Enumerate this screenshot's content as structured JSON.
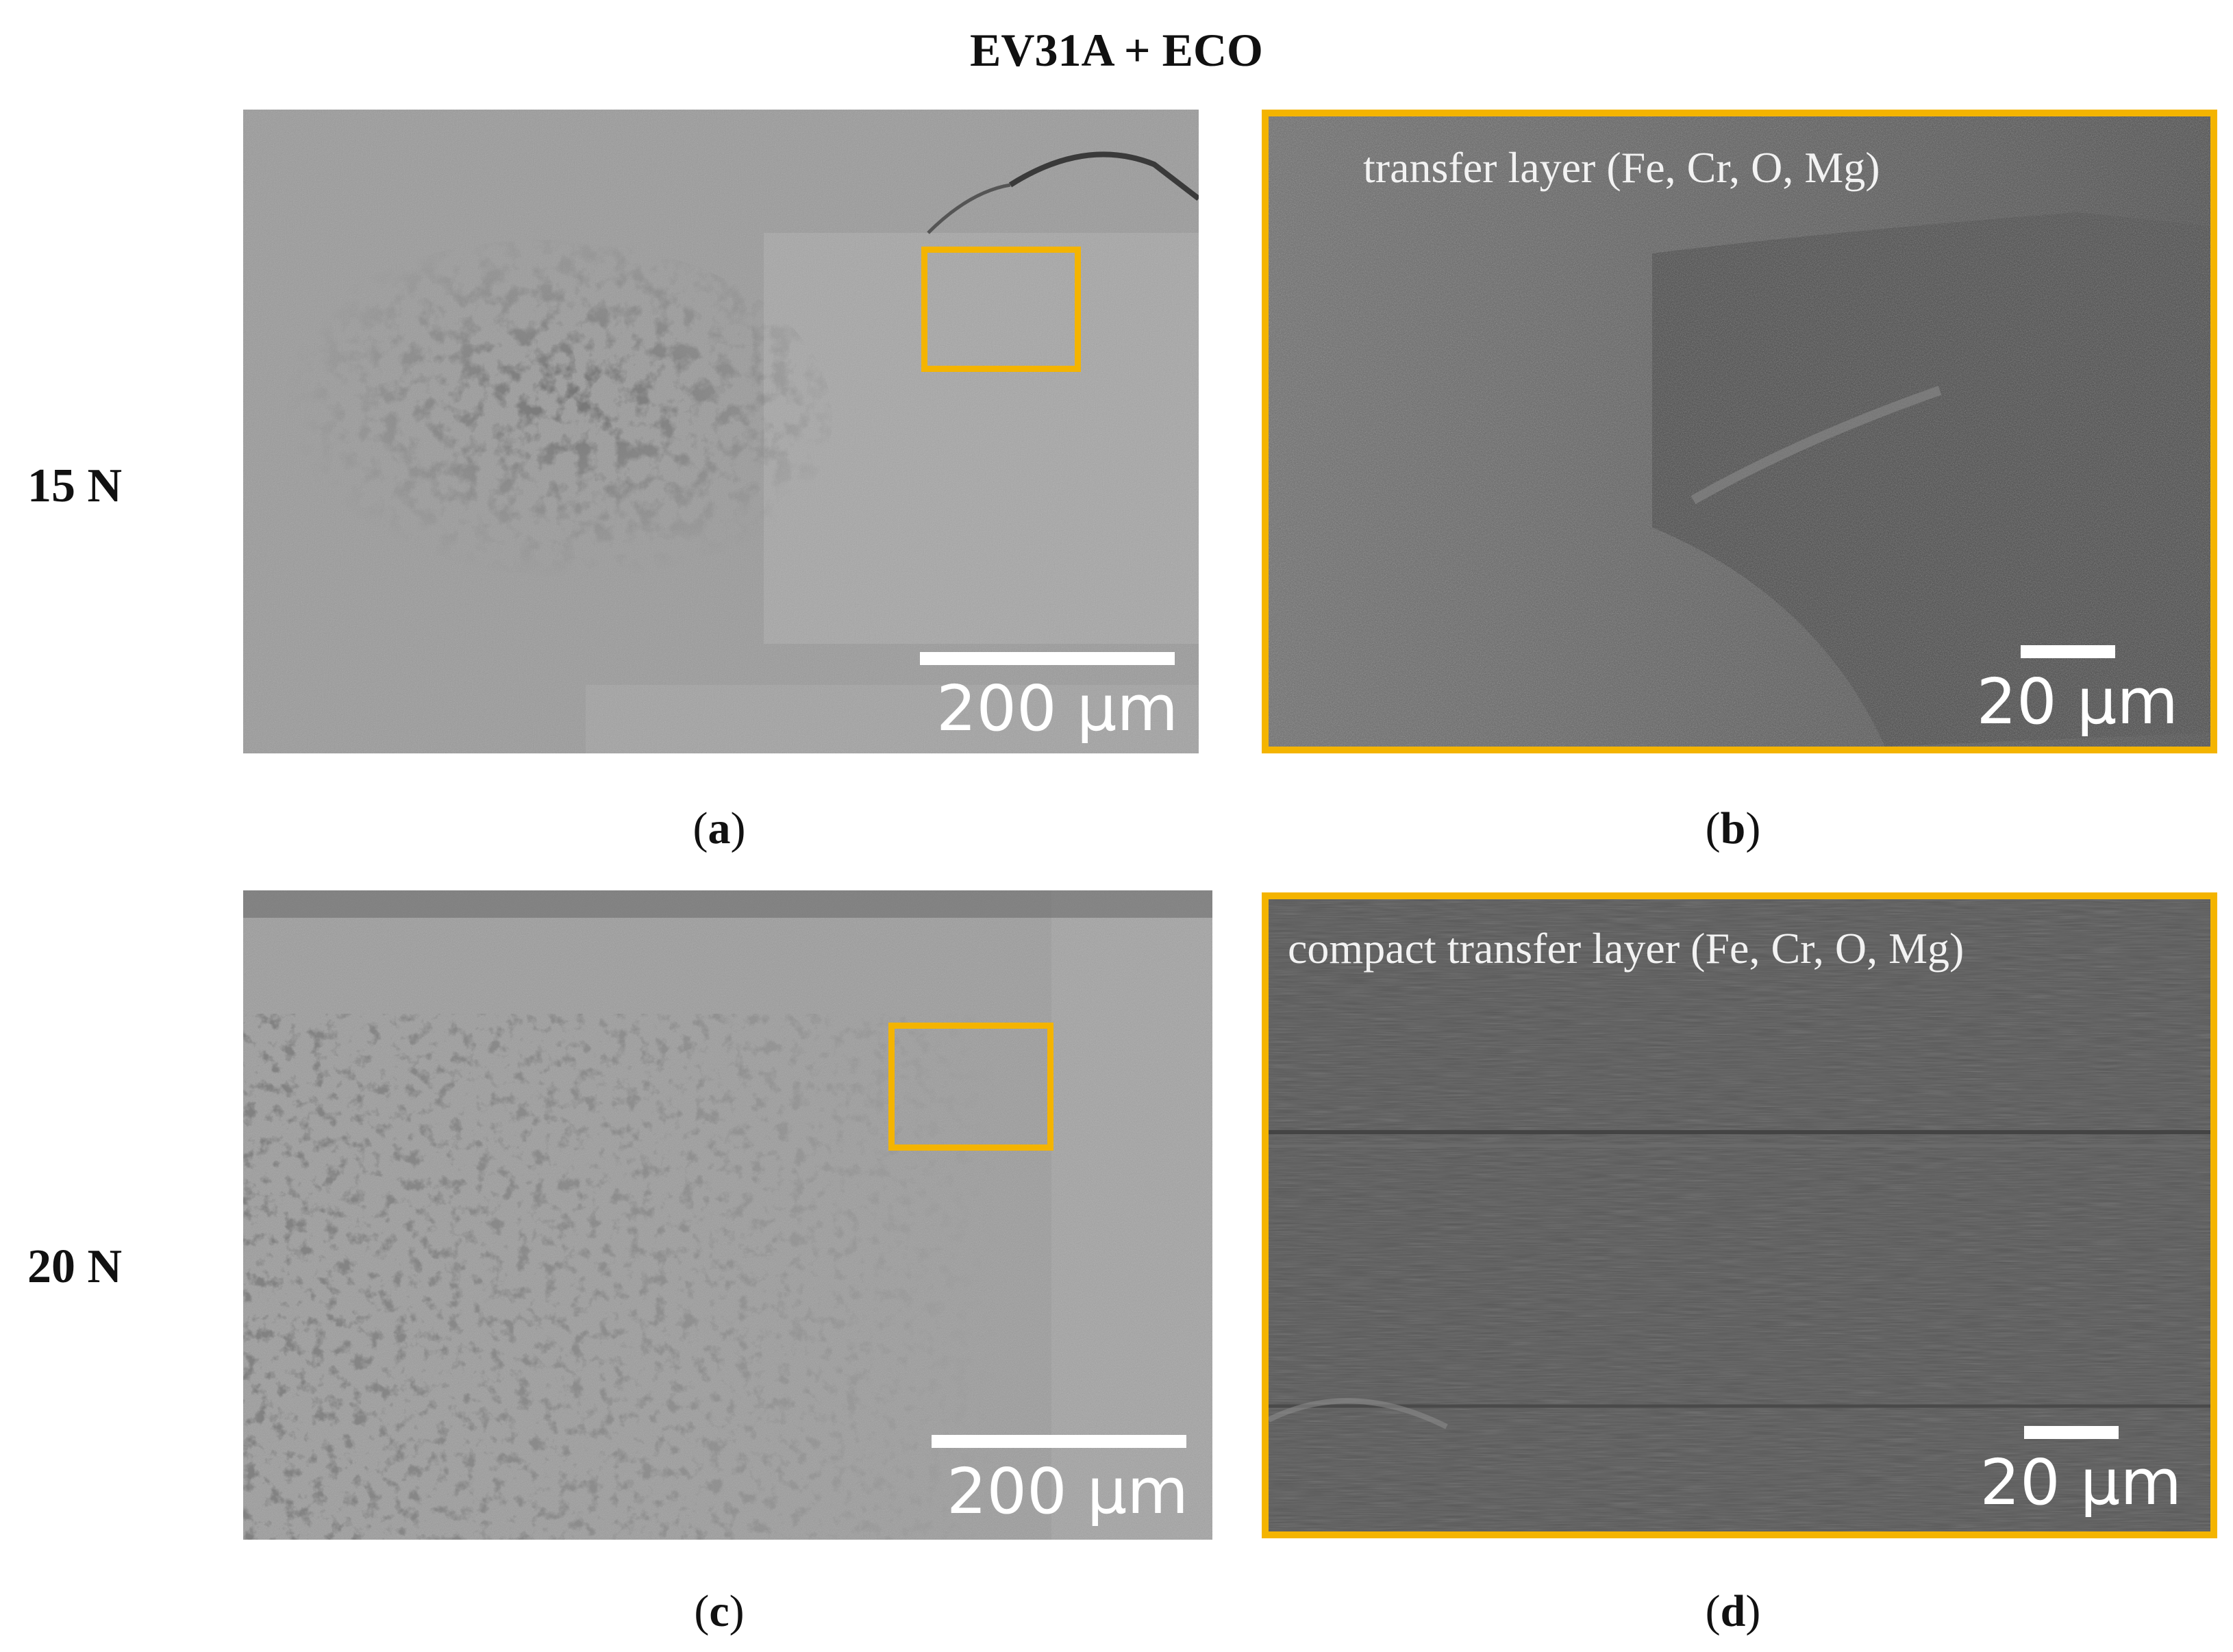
{
  "figure": {
    "title": "EV31A + ECO",
    "row_labels": [
      "15 N",
      "20 N"
    ],
    "panels": [
      {
        "id": "a",
        "caption_open": "(",
        "caption_letter": "a",
        "caption_close": ")",
        "scale": "200 µm",
        "highlight": "region of interest",
        "highlight_color": "#f4b400"
      },
      {
        "id": "b",
        "caption_open": "(",
        "caption_letter": "b",
        "caption_close": ")",
        "scale": "20 µm",
        "annotation": "transfer layer (Fe, Cr, O, Mg)",
        "frame_color": "#f4b400"
      },
      {
        "id": "c",
        "caption_open": "(",
        "caption_letter": "c",
        "caption_close": ")",
        "scale": "200 µm",
        "highlight": "region of interest",
        "highlight_color": "#f4b400"
      },
      {
        "id": "d",
        "caption_open": "(",
        "caption_letter": "d",
        "caption_close": ")",
        "scale": "20 µm",
        "annotation": "compact transfer layer (Fe, Cr, O, Mg)",
        "frame_color": "#f4b400"
      }
    ]
  }
}
